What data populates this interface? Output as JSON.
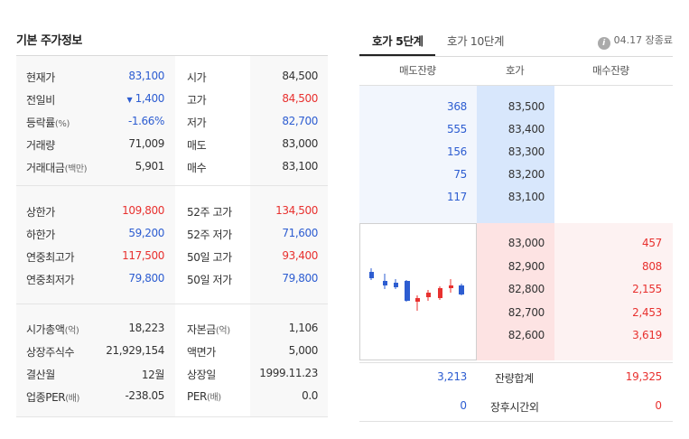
{
  "left": {
    "title": "기본 주가정보",
    "sections": [
      [
        {
          "l1": "현재가",
          "l1s": "",
          "v1": "83,100",
          "c1": "blue",
          "l2": "시가",
          "l2s": "",
          "v2": "84,500",
          "c2": "dark"
        },
        {
          "l1": "전일비",
          "l1s": "",
          "v1": "1,400",
          "c1": "blue",
          "arrow": "▼",
          "l2": "고가",
          "l2s": "",
          "v2": "84,500",
          "c2": "red"
        },
        {
          "l1": "등락률",
          "l1s": "(%)",
          "v1": "-1.66%",
          "c1": "blue",
          "l2": "저가",
          "l2s": "",
          "v2": "82,700",
          "c2": "blue"
        },
        {
          "l1": "거래량",
          "l1s": "",
          "v1": "71,009",
          "c1": "dark",
          "l2": "매도",
          "l2s": "",
          "v2": "83,000",
          "c2": "dark"
        },
        {
          "l1": "거래대금",
          "l1s": "(백만)",
          "v1": "5,901",
          "c1": "dark",
          "l2": "매수",
          "l2s": "",
          "v2": "83,100",
          "c2": "dark"
        }
      ],
      [
        {
          "l1": "상한가",
          "l1s": "",
          "v1": "109,800",
          "c1": "red",
          "l2": "52주 고가",
          "l2s": "",
          "v2": "134,500",
          "c2": "red"
        },
        {
          "l1": "하한가",
          "l1s": "",
          "v1": "59,200",
          "c1": "blue",
          "l2": "52주 저가",
          "l2s": "",
          "v2": "71,600",
          "c2": "blue"
        },
        {
          "l1": "연중최고가",
          "l1s": "",
          "v1": "117,500",
          "c1": "red",
          "l2": "50일 고가",
          "l2s": "",
          "v2": "93,400",
          "c2": "red"
        },
        {
          "l1": "연중최저가",
          "l1s": "",
          "v1": "79,800",
          "c1": "blue",
          "l2": "50일 저가",
          "l2s": "",
          "v2": "79,800",
          "c2": "blue"
        }
      ],
      [
        {
          "l1": "시가총액",
          "l1s": "(억)",
          "v1": "18,223",
          "c1": "dark",
          "l2": "자본금",
          "l2s": "(억)",
          "v2": "1,106",
          "c2": "dark"
        },
        {
          "l1": "상장주식수",
          "l1s": "",
          "v1": "21,929,154",
          "c1": "dark",
          "l2": "액면가",
          "l2s": "",
          "v2": "5,000",
          "c2": "dark"
        },
        {
          "l1": "결산월",
          "l1s": "",
          "v1": "12월",
          "c1": "dark",
          "l2": "상장일",
          "l2s": "",
          "v2": "1999.11.23",
          "c2": "dark"
        },
        {
          "l1": "업종PER",
          "l1s": "(배)",
          "v1": "-238.05",
          "c1": "dark",
          "l2": "PER",
          "l2s": "(배)",
          "v2": "0.0",
          "c2": "dark"
        }
      ]
    ]
  },
  "tabs": {
    "active": "호가 5단계",
    "inactive": "호가 10단계",
    "info_icon": "i",
    "info_text": "04.17 장종료"
  },
  "orderbook": {
    "headers": {
      "ask": "매도잔량",
      "price": "호가",
      "bid": "매수잔량"
    },
    "asks": [
      {
        "volume": "368",
        "price": "83,500"
      },
      {
        "volume": "555",
        "price": "83,400"
      },
      {
        "volume": "156",
        "price": "83,300"
      },
      {
        "volume": "75",
        "price": "83,200"
      },
      {
        "volume": "117",
        "price": "83,100"
      }
    ],
    "bids": [
      {
        "price": "83,000",
        "volume": "457"
      },
      {
        "price": "82,900",
        "volume": "808"
      },
      {
        "price": "82,800",
        "volume": "2,155"
      },
      {
        "price": "82,700",
        "volume": "2,453"
      },
      {
        "price": "82,600",
        "volume": "3,619"
      }
    ],
    "total": {
      "label": "잔량합계",
      "ask": "3,213",
      "bid": "19,325"
    },
    "after_hours": {
      "label": "장후시간외",
      "ask": "0",
      "bid": "0"
    },
    "colors": {
      "up": "#e8312f",
      "down": "#2d5dd1"
    }
  }
}
